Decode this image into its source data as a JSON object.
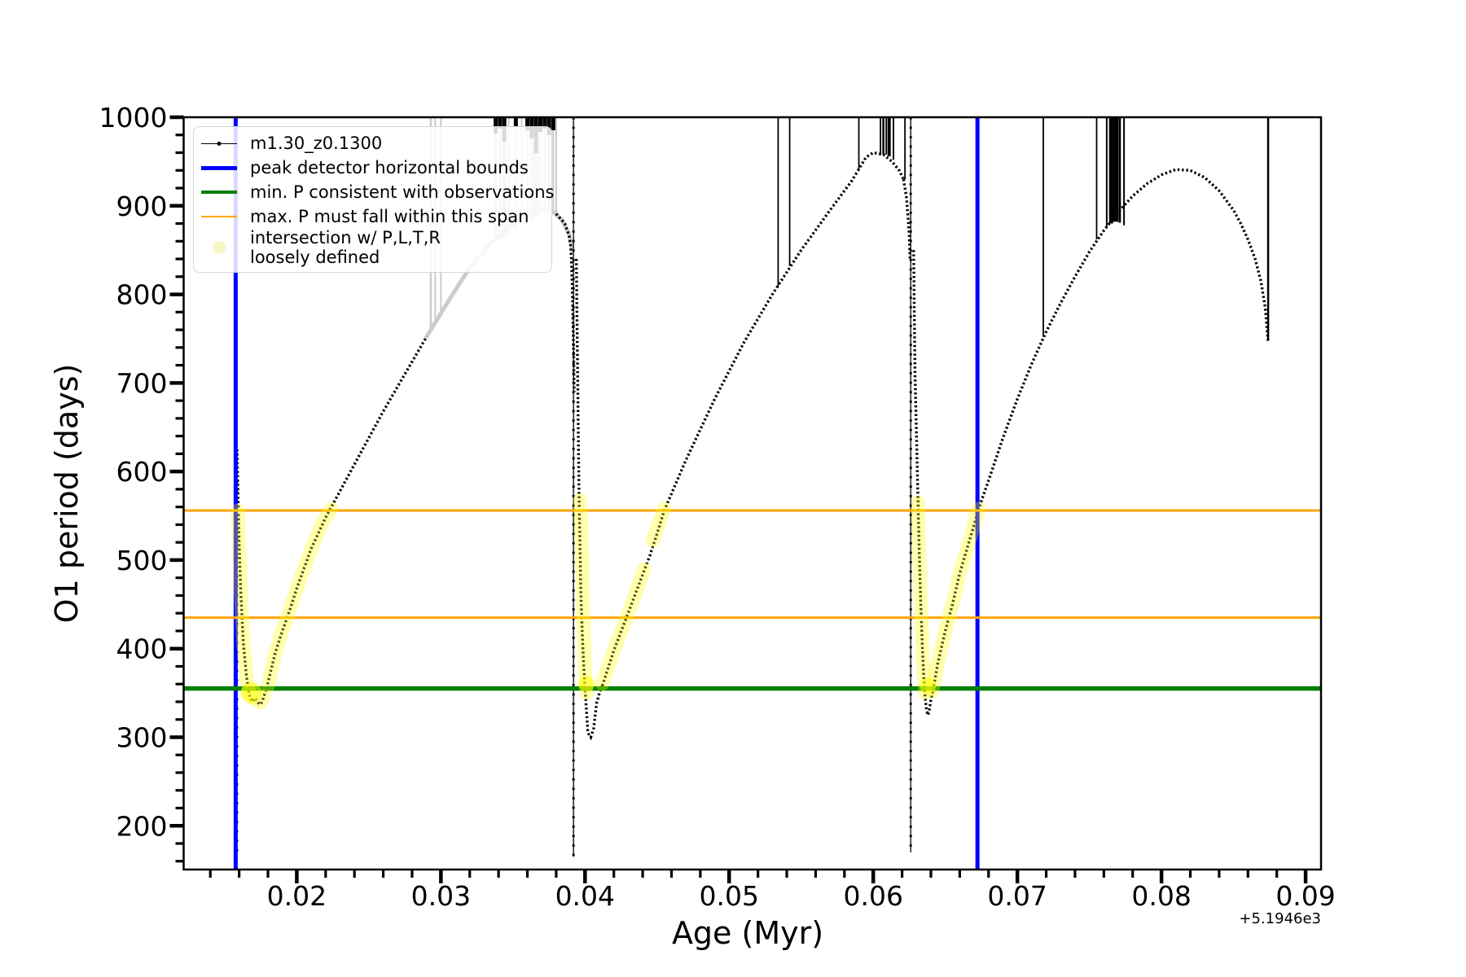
{
  "legend": {
    "items": [
      {
        "label": "m1.30_z0.1300",
        "type": "line-marker",
        "color": "#000000"
      },
      {
        "label": "peak detector horizontal bounds",
        "type": "line",
        "color": "#0000ff",
        "weight": 5
      },
      {
        "label": "min. P consistent with observations",
        "type": "line",
        "color": "#008000",
        "weight": 4
      },
      {
        "label": "max. P must fall within this span",
        "type": "line",
        "color": "#ffa500",
        "weight": 2.5
      },
      {
        "label": "intersection w/ P,L,T,R loosely defined",
        "label_line1": "intersection w/ P,L,T,R",
        "label_line2": "loosely defined",
        "type": "dot",
        "color": "#f6f6c6"
      }
    ]
  },
  "chart_data": {
    "type": "line",
    "title": "",
    "xlabel": "Age (Myr)",
    "ylabel": "O1 period (days)",
    "x_offset_label": "+5.1946e3",
    "xlim": [
      0.01215,
      0.09107
    ],
    "ylim": [
      150.6,
      1000
    ],
    "x_major_ticks": [
      {
        "v": 0.02,
        "label": "0.02"
      },
      {
        "v": 0.03,
        "label": "0.03"
      },
      {
        "v": 0.04,
        "label": "0.04"
      },
      {
        "v": 0.05,
        "label": "0.05"
      },
      {
        "v": 0.06,
        "label": "0.06"
      },
      {
        "v": 0.07,
        "label": "0.07"
      },
      {
        "v": 0.08,
        "label": "0.08"
      },
      {
        "v": 0.09,
        "label": "0.09"
      }
    ],
    "x_minor_step": 0.002,
    "y_major_ticks": [
      {
        "v": 200,
        "label": "200"
      },
      {
        "v": 300,
        "label": "300"
      },
      {
        "v": 400,
        "label": "400"
      },
      {
        "v": 500,
        "label": "500"
      },
      {
        "v": 600,
        "label": "600"
      },
      {
        "v": 700,
        "label": "700"
      },
      {
        "v": 800,
        "label": "800"
      },
      {
        "v": 900,
        "label": "900"
      },
      {
        "v": 1000,
        "label": "1000"
      }
    ],
    "y_minor_step": 20,
    "grid": false,
    "legend_position": "upper-left",
    "colors": {
      "curve": "#000000",
      "peak_bounds": "#0000ff",
      "min_p": "#008000",
      "max_p": "#ffa500",
      "highlight": "#ffff00",
      "faint_line": "#cbcbcb"
    },
    "hlines": {
      "min_p_consistent": 355,
      "max_p_span": [
        435,
        556
      ]
    },
    "vlines_peak_bounds": [
      0.01576,
      0.06723
    ],
    "series_name": "m1.30_z0.1300",
    "curve_segments": [
      {
        "style": "dense",
        "pts": [
          [
            0.01585,
            625
          ],
          [
            0.0159,
            590
          ],
          [
            0.01595,
            555
          ],
          [
            0.016,
            520
          ],
          [
            0.0161,
            470
          ],
          [
            0.0162,
            435
          ],
          [
            0.0163,
            405
          ],
          [
            0.0165,
            370
          ],
          [
            0.0167,
            348
          ],
          [
            0.0169,
            340
          ],
          [
            0.0171,
            344
          ],
          [
            0.0173,
            339
          ],
          [
            0.0175,
            337
          ],
          [
            0.0177,
            345
          ],
          [
            0.0179,
            355
          ]
        ]
      },
      {
        "style": "dense",
        "pts": [
          [
            0.0179,
            355
          ],
          [
            0.0185,
            395
          ],
          [
            0.019,
            420
          ],
          [
            0.0195,
            443
          ],
          [
            0.02,
            468
          ],
          [
            0.021,
            513
          ],
          [
            0.022,
            548
          ],
          [
            0.023,
            578
          ],
          [
            0.0245,
            623
          ],
          [
            0.026,
            668
          ],
          [
            0.0275,
            710
          ],
          [
            0.029,
            752
          ],
          [
            0.03,
            780
          ],
          [
            0.031,
            805
          ],
          [
            0.0318,
            825
          ]
        ]
      },
      {
        "style": "gray",
        "pts": [
          [
            0.029,
            752
          ],
          [
            0.0305,
            792
          ],
          [
            0.032,
            830
          ],
          [
            0.0335,
            858
          ],
          [
            0.035,
            880
          ],
          [
            0.0362,
            893
          ],
          [
            0.037,
            897
          ],
          [
            0.0378,
            893
          ],
          [
            0.0384,
            884
          ],
          [
            0.0389,
            868
          ],
          [
            0.0391,
            850
          ]
        ]
      },
      {
        "style": "dense",
        "pts": [
          [
            0.038,
            891
          ],
          [
            0.0386,
            880
          ],
          [
            0.0389,
            866
          ],
          [
            0.039,
            855
          ],
          [
            0.03905,
            840
          ],
          [
            0.0391,
            815
          ],
          [
            0.03915,
            780
          ],
          [
            0.0392,
            740
          ],
          [
            0.03925,
            690
          ]
        ]
      },
      {
        "style": "dense",
        "pts": [
          [
            0.0394,
            840
          ],
          [
            0.03945,
            760
          ],
          [
            0.0395,
            690
          ],
          [
            0.03955,
            620
          ],
          [
            0.0396,
            560
          ],
          [
            0.03965,
            520
          ],
          [
            0.0397,
            470
          ],
          [
            0.0398,
            420
          ],
          [
            0.0399,
            385
          ],
          [
            0.04,
            355
          ],
          [
            0.0401,
            330
          ],
          [
            0.0402,
            305
          ],
          [
            0.0404,
            300
          ],
          [
            0.0406,
            310
          ],
          [
            0.0408,
            338
          ],
          [
            0.041,
            350
          ],
          [
            0.0412,
            358
          ]
        ]
      },
      {
        "style": "dense",
        "pts": [
          [
            0.0412,
            358
          ],
          [
            0.042,
            398
          ],
          [
            0.0428,
            432
          ],
          [
            0.0435,
            462
          ],
          [
            0.0445,
            505
          ],
          [
            0.045,
            530
          ],
          [
            0.0455,
            556
          ],
          [
            0.047,
            613
          ],
          [
            0.049,
            682
          ],
          [
            0.051,
            745
          ],
          [
            0.053,
            800
          ],
          [
            0.055,
            850
          ],
          [
            0.057,
            895
          ],
          [
            0.0585,
            928
          ],
          [
            0.0595,
            955
          ],
          [
            0.06,
            960
          ],
          [
            0.0607,
            958
          ],
          [
            0.0613,
            950
          ],
          [
            0.0618,
            940
          ],
          [
            0.0621,
            930
          ]
        ]
      },
      {
        "style": "dense",
        "pts": [
          [
            0.0621,
            930
          ],
          [
            0.0623,
            910
          ],
          [
            0.0624,
            890
          ],
          [
            0.0625,
            865
          ],
          [
            0.06255,
            840
          ]
        ]
      },
      {
        "style": "dense",
        "pts": [
          [
            0.0628,
            850
          ],
          [
            0.06285,
            780
          ],
          [
            0.0629,
            710
          ],
          [
            0.063,
            640
          ],
          [
            0.0631,
            570
          ],
          [
            0.0632,
            505
          ],
          [
            0.0633,
            450
          ],
          [
            0.0634,
            405
          ],
          [
            0.0635,
            370
          ],
          [
            0.0636,
            345
          ],
          [
            0.0637,
            330
          ],
          [
            0.0638,
            325
          ],
          [
            0.0639,
            332
          ],
          [
            0.064,
            342
          ],
          [
            0.0642,
            358
          ]
        ]
      },
      {
        "style": "dense",
        "pts": [
          [
            0.0642,
            358
          ],
          [
            0.0645,
            385
          ],
          [
            0.065,
            420
          ],
          [
            0.0655,
            450
          ],
          [
            0.066,
            485
          ],
          [
            0.067,
            540
          ],
          [
            0.0674,
            562
          ],
          [
            0.068,
            590
          ],
          [
            0.069,
            638
          ],
          [
            0.07,
            682
          ],
          [
            0.071,
            722
          ],
          [
            0.072,
            758
          ],
          [
            0.073,
            790
          ],
          [
            0.074,
            820
          ],
          [
            0.075,
            848
          ],
          [
            0.076,
            872
          ],
          [
            0.077,
            893
          ],
          [
            0.078,
            911
          ],
          [
            0.079,
            925
          ],
          [
            0.08,
            935
          ],
          [
            0.081,
            941
          ],
          [
            0.082,
            940
          ],
          [
            0.083,
            932
          ],
          [
            0.084,
            917
          ],
          [
            0.085,
            895
          ],
          [
            0.0855,
            880
          ],
          [
            0.086,
            862
          ],
          [
            0.0865,
            840
          ],
          [
            0.0869,
            815
          ],
          [
            0.0872,
            785
          ],
          [
            0.0873,
            765
          ],
          [
            0.0874,
            746
          ]
        ]
      }
    ],
    "drops": [
      {
        "age": 0.01585,
        "from": 600,
        "to": 168,
        "solid": false
      },
      {
        "age": 0.0392,
        "from": 1000,
        "to": 165,
        "solid": true
      },
      {
        "age": 0.0626,
        "from": 1000,
        "to": 170,
        "solid": true
      }
    ],
    "gray_spikes": [
      {
        "age": 0.0293,
        "to": 760,
        "w": 2.5
      },
      {
        "age": 0.0296,
        "to": 765,
        "w": 2
      },
      {
        "age": 0.03,
        "to": 775,
        "w": 2
      },
      {
        "age": 0.0338,
        "to": 860,
        "w": 3
      },
      {
        "age": 0.0341,
        "to": 862,
        "w": 2
      },
      {
        "age": 0.0344,
        "to": 864,
        "w": 5
      },
      {
        "age": 0.0347,
        "to": 866,
        "w": 2
      },
      {
        "age": 0.0352,
        "to": 872,
        "w": 2
      },
      {
        "age": 0.0356,
        "to": 876,
        "w": 2
      },
      {
        "age": 0.036,
        "to": 880,
        "w": 2
      },
      {
        "age": 0.0363,
        "to": 884,
        "w": 3
      },
      {
        "age": 0.0366,
        "to": 888,
        "w": 6
      },
      {
        "age": 0.0369,
        "to": 891,
        "w": 2
      },
      {
        "age": 0.0372,
        "to": 893,
        "w": 2
      },
      {
        "age": 0.0375,
        "to": 895,
        "w": 3
      },
      {
        "age": 0.0378,
        "to": 893,
        "w": 2
      },
      {
        "age": 0.038,
        "to": 891,
        "w": 2
      }
    ],
    "black_spikes": [
      {
        "age": 0.0534,
        "to": 808,
        "w": 1.8
      },
      {
        "age": 0.0542,
        "to": 832,
        "w": 1.8
      },
      {
        "age": 0.059,
        "to": 940,
        "w": 1.8
      },
      {
        "age": 0.0605,
        "to": 957,
        "w": 1.8
      },
      {
        "age": 0.0607,
        "to": 958,
        "w": 2.5
      },
      {
        "age": 0.0609,
        "to": 958,
        "w": 1.8
      },
      {
        "age": 0.0611,
        "to": 956,
        "w": 4
      },
      {
        "age": 0.0614,
        "to": 952,
        "w": 2
      },
      {
        "age": 0.0622,
        "to": 930,
        "w": 1.8
      },
      {
        "age": 0.0718,
        "to": 752,
        "w": 1.8
      },
      {
        "age": 0.0755,
        "to": 862,
        "w": 1.8
      },
      {
        "age": 0.0762,
        "to": 876,
        "w": 2
      },
      {
        "age": 0.0765,
        "to": 880,
        "w": 5
      },
      {
        "age": 0.0768,
        "to": 882,
        "w": 7
      },
      {
        "age": 0.0771,
        "to": 881,
        "w": 3
      },
      {
        "age": 0.0774,
        "to": 878,
        "w": 2
      },
      {
        "age": 0.0874,
        "to": 748,
        "w": 2.5
      }
    ],
    "top_clip_marks": [
      {
        "age": 0.0338,
        "len": 20
      },
      {
        "age": 0.0341,
        "len": 14
      },
      {
        "age": 0.0344,
        "len": 30
      },
      {
        "age": 0.0352,
        "len": 12
      },
      {
        "age": 0.036,
        "len": 16
      },
      {
        "age": 0.0363,
        "len": 26
      },
      {
        "age": 0.0366,
        "len": 44
      },
      {
        "age": 0.0369,
        "len": 18
      },
      {
        "age": 0.0372,
        "len": 14
      },
      {
        "age": 0.0375,
        "len": 22
      },
      {
        "age": 0.0378,
        "len": 16
      }
    ],
    "highlight_bands": [
      [
        [
          0.0159,
          556
        ],
        [
          0.016,
          520
        ],
        [
          0.0161,
          470
        ],
        [
          0.0162,
          435
        ],
        [
          0.0163,
          405
        ],
        [
          0.0165,
          370
        ],
        [
          0.0167,
          350
        ],
        [
          0.0171,
          342
        ],
        [
          0.0175,
          339
        ],
        [
          0.0177,
          346
        ]
      ],
      [
        [
          0.018,
          358
        ],
        [
          0.0185,
          395
        ],
        [
          0.019,
          420
        ],
        [
          0.0195,
          443
        ],
        [
          0.02,
          468
        ],
        [
          0.021,
          513
        ],
        [
          0.0218,
          543
        ],
        [
          0.0224,
          558
        ]
      ],
      [
        [
          0.03965,
          568
        ],
        [
          0.0397,
          555
        ],
        [
          0.0398,
          500
        ],
        [
          0.0399,
          430
        ],
        [
          0.04,
          375
        ],
        [
          0.0401,
          350
        ]
      ],
      [
        [
          0.0412,
          360
        ],
        [
          0.042,
          398
        ],
        [
          0.0428,
          432
        ],
        [
          0.0435,
          462
        ],
        [
          0.0441,
          490
        ]
      ],
      [
        [
          0.0447,
          522
        ],
        [
          0.0452,
          545
        ],
        [
          0.0455,
          558
        ]
      ],
      [
        [
          0.0631,
          565
        ],
        [
          0.0632,
          505
        ],
        [
          0.0633,
          450
        ],
        [
          0.0634,
          405
        ],
        [
          0.0635,
          370
        ],
        [
          0.0636,
          350
        ]
      ],
      [
        [
          0.0641,
          352
        ],
        [
          0.0645,
          385
        ],
        [
          0.065,
          420
        ],
        [
          0.0655,
          450
        ],
        [
          0.066,
          485
        ],
        [
          0.067,
          540
        ],
        [
          0.0673,
          558
        ]
      ]
    ],
    "highlight_dots": [
      {
        "age": 0.01685,
        "per": 350,
        "r": 13
      },
      {
        "age": 0.0401,
        "per": 360,
        "r": 10
      },
      {
        "age": 0.0638,
        "per": 358,
        "r": 10
      }
    ]
  }
}
